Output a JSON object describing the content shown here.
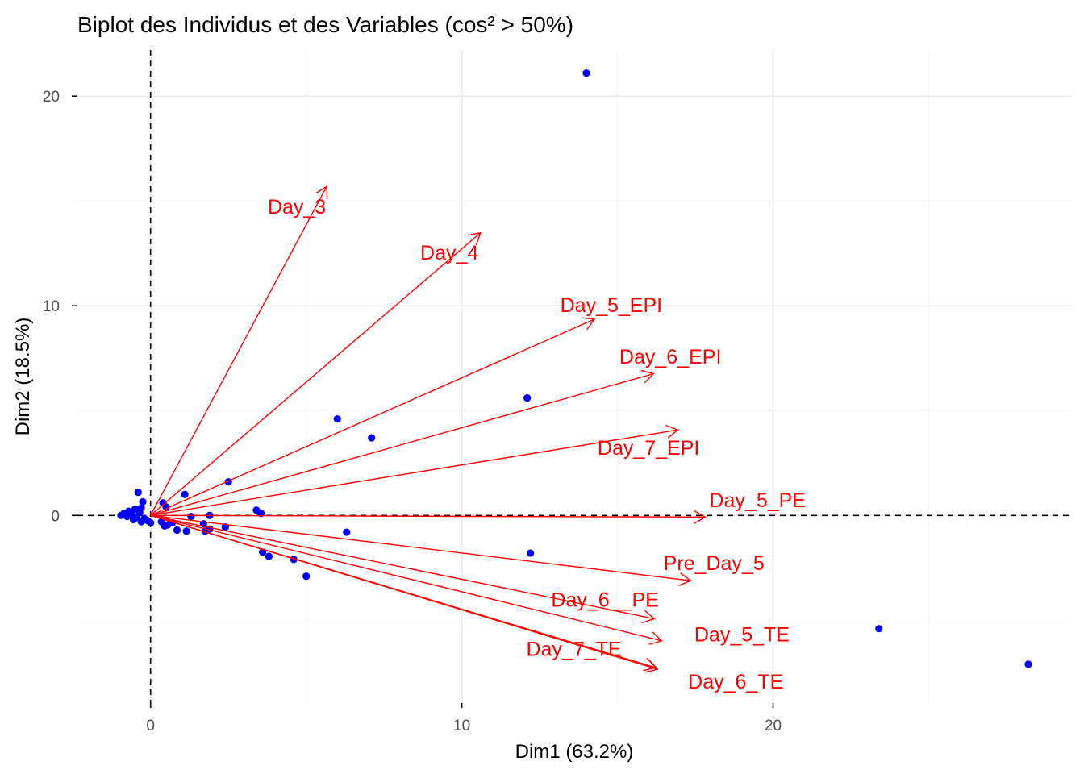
{
  "chart_data": {
    "type": "scatter",
    "subtype": "pca-biplot",
    "title": "Biplot des Individus et des Variables (cos² > 50%)",
    "xlabel": "Dim1 (63.2%)",
    "ylabel": "Dim2 (18.5%)",
    "xlim": [
      -2.35,
      29.6
    ],
    "ylim": [
      -8.95,
      22.2
    ],
    "x_ticks": [
      0,
      10,
      20
    ],
    "y_ticks": [
      0,
      10,
      20
    ],
    "x_tick_labels": [
      "0",
      "10",
      "20"
    ],
    "y_tick_labels": [
      "0",
      "10",
      "20"
    ],
    "grid": true,
    "reference_lines": {
      "x": 0,
      "y": 0,
      "style": "dashed"
    },
    "colors": {
      "individuals": "#0000ff",
      "variables": "#ff0000",
      "reference": "#000000",
      "grid": "#ebebeb"
    },
    "individuals": [
      {
        "x": 14.0,
        "y": 21.1
      },
      {
        "x": 12.1,
        "y": 5.6
      },
      {
        "x": 6.0,
        "y": 4.6
      },
      {
        "x": 7.1,
        "y": 3.7
      },
      {
        "x": 2.5,
        "y": 1.6
      },
      {
        "x": 1.1,
        "y": 1.0
      },
      {
        "x": 0.4,
        "y": 0.6
      },
      {
        "x": 0.5,
        "y": 0.4
      },
      {
        "x": -0.4,
        "y": 1.1
      },
      {
        "x": -0.25,
        "y": 0.65
      },
      {
        "x": -0.3,
        "y": 0.35
      },
      {
        "x": -0.5,
        "y": 0.3
      },
      {
        "x": -0.7,
        "y": 0.2
      },
      {
        "x": -0.85,
        "y": 0.1
      },
      {
        "x": -0.95,
        "y": 0.0
      },
      {
        "x": -0.75,
        "y": -0.05
      },
      {
        "x": -0.6,
        "y": 0.05
      },
      {
        "x": -0.45,
        "y": -0.1
      },
      {
        "x": -0.35,
        "y": 0.15
      },
      {
        "x": -0.2,
        "y": -0.15
      },
      {
        "x": -0.1,
        "y": -0.25
      },
      {
        "x": -0.55,
        "y": -0.2
      },
      {
        "x": -0.3,
        "y": -0.3
      },
      {
        "x": 0.0,
        "y": -0.35
      },
      {
        "x": 0.35,
        "y": -0.3
      },
      {
        "x": 0.55,
        "y": -0.45
      },
      {
        "x": 0.85,
        "y": -0.7
      },
      {
        "x": 1.15,
        "y": -0.75
      },
      {
        "x": 0.45,
        "y": -0.5
      },
      {
        "x": 0.7,
        "y": -0.35
      },
      {
        "x": 1.3,
        "y": -0.05
      },
      {
        "x": 1.9,
        "y": 0.0
      },
      {
        "x": 1.7,
        "y": -0.4
      },
      {
        "x": 1.75,
        "y": -0.75
      },
      {
        "x": 1.9,
        "y": -0.65
      },
      {
        "x": 2.4,
        "y": -0.55
      },
      {
        "x": 3.4,
        "y": 0.25
      },
      {
        "x": 3.55,
        "y": 0.1
      },
      {
        "x": 6.3,
        "y": -0.8
      },
      {
        "x": 3.6,
        "y": -1.75
      },
      {
        "x": 3.8,
        "y": -1.95
      },
      {
        "x": 4.6,
        "y": -2.1
      },
      {
        "x": 5.0,
        "y": -2.9
      },
      {
        "x": 12.2,
        "y": -1.8
      },
      {
        "x": 23.4,
        "y": -5.4
      },
      {
        "x": 28.2,
        "y": -7.1
      }
    ],
    "variables": [
      {
        "name": "Day_3",
        "x": 5.66,
        "y": 15.69
      },
      {
        "name": "Day_4",
        "x": 10.6,
        "y": 13.48
      },
      {
        "name": "Day_5_EPI",
        "x": 14.26,
        "y": 9.36
      },
      {
        "name": "Day_6_EPI",
        "x": 16.16,
        "y": 6.76
      },
      {
        "name": "Day_7_EPI",
        "x": 16.94,
        "y": 4.08
      },
      {
        "name": "Day_5_PE",
        "x": 17.82,
        "y": -0.08
      },
      {
        "name": "Pre_Day_5",
        "x": 17.35,
        "y": -3.11
      },
      {
        "name": "Day_6__PE",
        "x": 16.18,
        "y": -4.93
      },
      {
        "name": "Day_5_TE",
        "x": 16.42,
        "y": -5.98
      },
      {
        "name": "Day_7_TE",
        "x": 16.23,
        "y": -7.26
      },
      {
        "name": "Day_6_TE",
        "x": 16.29,
        "y": -7.34
      }
    ],
    "variable_label_positions": [
      {
        "name": "Day_3",
        "x": 4.7,
        "y": 14.65
      },
      {
        "name": "Day_4",
        "x": 9.6,
        "y": 12.45
      },
      {
        "name": "Day_5_EPI",
        "x": 14.8,
        "y": 9.95
      },
      {
        "name": "Day_6_EPI",
        "x": 16.7,
        "y": 7.5
      },
      {
        "name": "Day_7_EPI",
        "x": 16.0,
        "y": 3.15
      },
      {
        "name": "Day_5_PE",
        "x": 19.5,
        "y": 0.65
      },
      {
        "name": "Pre_Day_5",
        "x": 18.1,
        "y": -2.35
      },
      {
        "name": "Day_6__PE",
        "x": 14.6,
        "y": -4.1
      },
      {
        "name": "Day_5_TE",
        "x": 19.0,
        "y": -5.75
      },
      {
        "name": "Day_7_TE",
        "x": 13.6,
        "y": -6.45
      },
      {
        "name": "Day_6_TE",
        "x": 18.8,
        "y": -8.0
      }
    ]
  }
}
